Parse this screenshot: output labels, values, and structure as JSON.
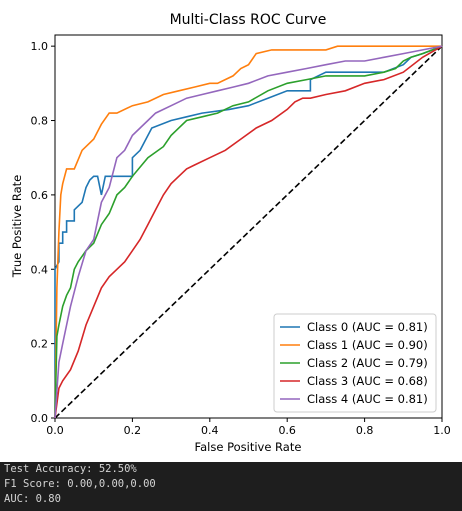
{
  "chart_data": {
    "type": "line",
    "title": "Multi-Class ROC Curve",
    "xlabel": "False Positive Rate",
    "ylabel": "True Positive Rate",
    "xlim": [
      0,
      1
    ],
    "ylim": [
      0,
      1.03
    ],
    "xticks": [
      "0.0",
      "0.2",
      "0.4",
      "0.6",
      "0.8",
      "1.0"
    ],
    "yticks": [
      "0.0",
      "0.2",
      "0.4",
      "0.6",
      "0.8",
      "1.0"
    ],
    "grid": false,
    "legend_position": "lower-right",
    "reference_line": {
      "x": [
        0,
        1
      ],
      "y": [
        0,
        1
      ],
      "style": "dashed",
      "color": "#000000"
    },
    "series": [
      {
        "name": "Class 0 (AUC = 0.81)",
        "color": "#1f77b4",
        "x": [
          0,
          0,
          0.01,
          0.01,
          0.02,
          0.02,
          0.03,
          0.03,
          0.05,
          0.05,
          0.07,
          0.08,
          0.09,
          0.1,
          0.11,
          0.12,
          0.13,
          0.2,
          0.2,
          0.22,
          0.25,
          0.3,
          0.34,
          0.38,
          0.45,
          0.5,
          0.55,
          0.6,
          0.62,
          0.66,
          0.66,
          0.7,
          0.75,
          0.8,
          0.85,
          0.9,
          0.92,
          0.95,
          1.0
        ],
        "y": [
          0,
          0.4,
          0.42,
          0.47,
          0.47,
          0.5,
          0.5,
          0.53,
          0.53,
          0.56,
          0.58,
          0.62,
          0.64,
          0.65,
          0.65,
          0.6,
          0.65,
          0.65,
          0.7,
          0.72,
          0.78,
          0.8,
          0.81,
          0.82,
          0.83,
          0.84,
          0.86,
          0.88,
          0.88,
          0.88,
          0.91,
          0.93,
          0.93,
          0.93,
          0.93,
          0.95,
          0.97,
          0.98,
          1.0
        ]
      },
      {
        "name": "Class 1 (AUC = 0.90)",
        "color": "#ff7f0e",
        "x": [
          0,
          0.005,
          0.01,
          0.015,
          0.02,
          0.03,
          0.05,
          0.07,
          0.08,
          0.1,
          0.12,
          0.14,
          0.16,
          0.2,
          0.24,
          0.28,
          0.32,
          0.36,
          0.4,
          0.42,
          0.46,
          0.48,
          0.5,
          0.52,
          0.56,
          0.6,
          0.65,
          0.7,
          0.73,
          0.75,
          0.8,
          0.85,
          0.9,
          1.0
        ],
        "y": [
          0,
          0.35,
          0.5,
          0.6,
          0.63,
          0.67,
          0.67,
          0.72,
          0.73,
          0.75,
          0.79,
          0.82,
          0.82,
          0.84,
          0.85,
          0.87,
          0.88,
          0.89,
          0.9,
          0.9,
          0.92,
          0.94,
          0.95,
          0.98,
          0.99,
          0.99,
          0.99,
          0.99,
          1.0,
          1.0,
          1.0,
          1.0,
          1.0,
          1.0
        ]
      },
      {
        "name": "Class 2 (AUC = 0.79)",
        "color": "#2ca02c",
        "x": [
          0,
          0.005,
          0.01,
          0.02,
          0.03,
          0.04,
          0.05,
          0.06,
          0.08,
          0.1,
          0.12,
          0.14,
          0.16,
          0.18,
          0.2,
          0.24,
          0.28,
          0.3,
          0.34,
          0.38,
          0.42,
          0.46,
          0.5,
          0.55,
          0.6,
          0.65,
          0.7,
          0.75,
          0.8,
          0.85,
          0.88,
          0.9,
          0.92,
          0.95,
          1.0
        ],
        "y": [
          0,
          0.22,
          0.25,
          0.3,
          0.33,
          0.35,
          0.4,
          0.42,
          0.45,
          0.47,
          0.52,
          0.55,
          0.6,
          0.62,
          0.65,
          0.7,
          0.73,
          0.76,
          0.8,
          0.81,
          0.82,
          0.84,
          0.85,
          0.88,
          0.9,
          0.91,
          0.92,
          0.92,
          0.92,
          0.93,
          0.94,
          0.96,
          0.97,
          0.98,
          1.0
        ]
      },
      {
        "name": "Class 3 (AUC = 0.68)",
        "color": "#d62728",
        "x": [
          0,
          0.01,
          0.02,
          0.04,
          0.06,
          0.08,
          0.1,
          0.12,
          0.14,
          0.16,
          0.18,
          0.2,
          0.22,
          0.24,
          0.26,
          0.28,
          0.3,
          0.32,
          0.34,
          0.36,
          0.4,
          0.44,
          0.48,
          0.52,
          0.56,
          0.6,
          0.62,
          0.64,
          0.66,
          0.7,
          0.75,
          0.8,
          0.85,
          0.9,
          0.95,
          1.0
        ],
        "y": [
          0,
          0.08,
          0.1,
          0.13,
          0.18,
          0.25,
          0.3,
          0.35,
          0.38,
          0.4,
          0.42,
          0.45,
          0.48,
          0.52,
          0.56,
          0.6,
          0.63,
          0.65,
          0.67,
          0.68,
          0.7,
          0.72,
          0.75,
          0.78,
          0.8,
          0.83,
          0.85,
          0.86,
          0.86,
          0.87,
          0.88,
          0.9,
          0.91,
          0.93,
          0.97,
          1.0
        ]
      },
      {
        "name": "Class 4 (AUC = 0.81)",
        "color": "#9467bd",
        "x": [
          0,
          0.01,
          0.02,
          0.03,
          0.04,
          0.06,
          0.08,
          0.1,
          0.12,
          0.14,
          0.16,
          0.18,
          0.2,
          0.22,
          0.24,
          0.26,
          0.3,
          0.34,
          0.38,
          0.42,
          0.46,
          0.5,
          0.55,
          0.6,
          0.65,
          0.7,
          0.75,
          0.8,
          0.85,
          0.9,
          0.95,
          1.0
        ],
        "y": [
          0,
          0.15,
          0.2,
          0.25,
          0.3,
          0.38,
          0.45,
          0.48,
          0.58,
          0.62,
          0.7,
          0.72,
          0.76,
          0.78,
          0.8,
          0.82,
          0.84,
          0.86,
          0.87,
          0.88,
          0.89,
          0.9,
          0.92,
          0.93,
          0.94,
          0.95,
          0.96,
          0.96,
          0.97,
          0.98,
          0.99,
          1.0
        ]
      }
    ]
  },
  "console": {
    "accuracy_line": "Test Accuracy: 52.50%",
    "f1_line": "F1 Score: 0.00,0.00,0.00",
    "auc_line": "AUC: 0.80"
  }
}
